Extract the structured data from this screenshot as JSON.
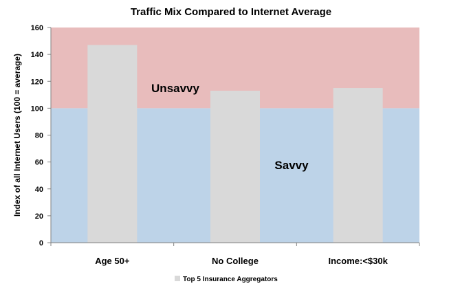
{
  "chart_data": {
    "type": "bar",
    "title": "Traffic Mix Compared to Internet Average",
    "xlabel": "",
    "ylabel": "Index of all Internet Users (100 = average)",
    "categories": [
      "Age 50+",
      "No College",
      "Income:<$30k"
    ],
    "series": [
      {
        "name": "Top 5 Insurance Aggregators",
        "values": [
          147,
          113,
          115
        ],
        "color": "#d9d9d9"
      }
    ],
    "ylim": [
      0,
      160
    ],
    "yticks": [
      0,
      20,
      40,
      60,
      80,
      100,
      120,
      140,
      160
    ],
    "grid": false,
    "legend": "bottom-center",
    "bands": [
      {
        "label": "Savvy",
        "from": 0,
        "to": 100,
        "color": "#bdd3e8"
      },
      {
        "label": "Unsavvy",
        "from": 100,
        "to": 160,
        "color": "#e8bcbc"
      }
    ]
  }
}
